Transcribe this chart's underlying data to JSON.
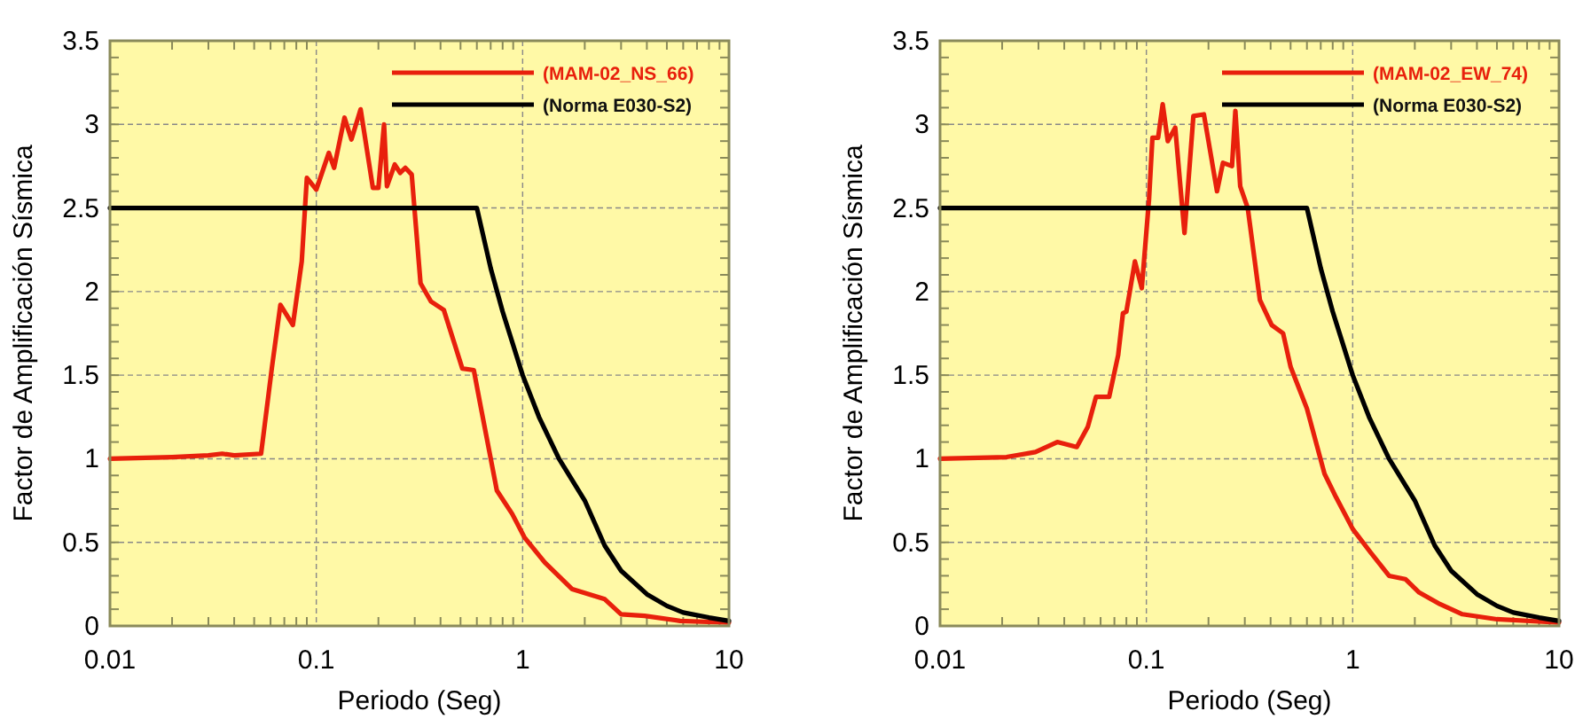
{
  "chart_data": [
    {
      "type": "line",
      "xlabel": "Periodo (Seg)",
      "ylabel": "Factor de Amplificación Sísmica",
      "log": "x",
      "xlim": [
        0.01,
        10
      ],
      "xticks": [
        0.01,
        0.1,
        1,
        10
      ],
      "ylim": [
        0,
        3.5
      ],
      "yticks": [
        0,
        0.5,
        1,
        1.5,
        2,
        2.5,
        3,
        3.5
      ],
      "grid": true,
      "legend": "top right",
      "line_style": "solid",
      "marker": "none",
      "series": [
        {
          "name": "(MAM-02_NS_66)",
          "color": "#e8200c",
          "x": [
            0.01,
            0.02,
            0.03,
            0.035,
            0.04,
            0.054,
            0.061,
            0.067,
            0.077,
            0.085,
            0.09,
            0.1,
            0.115,
            0.122,
            0.137,
            0.148,
            0.164,
            0.188,
            0.2,
            0.213,
            0.22,
            0.24,
            0.255,
            0.27,
            0.29,
            0.32,
            0.36,
            0.415,
            0.51,
            0.58,
            0.62,
            0.75,
            0.89,
            1.02,
            1.28,
            1.74,
            2.5,
            3.0,
            3.9,
            5.8,
            10
          ],
          "values": [
            1.0,
            1.01,
            1.02,
            1.03,
            1.02,
            1.03,
            1.55,
            1.92,
            1.8,
            2.18,
            2.68,
            2.61,
            2.83,
            2.74,
            3.04,
            2.91,
            3.09,
            2.62,
            2.62,
            3.0,
            2.63,
            2.76,
            2.71,
            2.74,
            2.7,
            2.05,
            1.94,
            1.89,
            1.54,
            1.53,
            1.34,
            0.81,
            0.67,
            0.53,
            0.38,
            0.22,
            0.16,
            0.07,
            0.06,
            0.03,
            0.02
          ]
        },
        {
          "name": "(Norma E030-S2)",
          "color": "#000000",
          "x": [
            0.01,
            0.6,
            0.7,
            0.8,
            1,
            1.2,
            1.5,
            2,
            2.5,
            3,
            4,
            5,
            6,
            8,
            10
          ],
          "values": [
            2.5,
            2.5,
            2.14,
            1.88,
            1.5,
            1.25,
            1.0,
            0.75,
            0.48,
            0.33,
            0.19,
            0.12,
            0.08,
            0.05,
            0.03
          ]
        }
      ]
    },
    {
      "type": "line",
      "xlabel": "Periodo (Seg)",
      "ylabel": "Factor de Amplificación Sísmica",
      "log": "x",
      "xlim": [
        0.01,
        10
      ],
      "xticks": [
        0.01,
        0.1,
        1,
        10
      ],
      "ylim": [
        0,
        3.5
      ],
      "yticks": [
        0,
        0.5,
        1,
        1.5,
        2,
        2.5,
        3,
        3.5
      ],
      "grid": true,
      "legend": "top right",
      "line_style": "solid",
      "marker": "none",
      "series": [
        {
          "name": "(MAM-02_EW_74)",
          "color": "#e8200c",
          "x": [
            0.01,
            0.021,
            0.029,
            0.037,
            0.046,
            0.052,
            0.057,
            0.066,
            0.073,
            0.077,
            0.08,
            0.088,
            0.095,
            0.103,
            0.107,
            0.114,
            0.12,
            0.127,
            0.138,
            0.153,
            0.169,
            0.19,
            0.2,
            0.22,
            0.235,
            0.26,
            0.27,
            0.285,
            0.31,
            0.355,
            0.405,
            0.46,
            0.5,
            0.6,
            0.73,
            0.83,
            1.0,
            1.22,
            1.5,
            1.8,
            2.1,
            2.65,
            3.4,
            5.0,
            10
          ],
          "values": [
            1.0,
            1.01,
            1.04,
            1.1,
            1.07,
            1.19,
            1.37,
            1.37,
            1.62,
            1.87,
            1.88,
            2.18,
            2.02,
            2.55,
            2.92,
            2.92,
            3.12,
            2.9,
            2.98,
            2.35,
            3.05,
            3.06,
            2.9,
            2.6,
            2.77,
            2.75,
            3.08,
            2.63,
            2.5,
            1.95,
            1.8,
            1.75,
            1.55,
            1.3,
            0.91,
            0.77,
            0.58,
            0.44,
            0.3,
            0.28,
            0.2,
            0.13,
            0.07,
            0.04,
            0.02
          ]
        },
        {
          "name": "(Norma E030-S2)",
          "color": "#000000",
          "x": [
            0.01,
            0.6,
            0.7,
            0.8,
            1,
            1.2,
            1.5,
            2,
            2.5,
            3,
            4,
            5,
            6,
            8,
            10
          ],
          "values": [
            2.5,
            2.5,
            2.14,
            1.88,
            1.5,
            1.25,
            1.0,
            0.75,
            0.48,
            0.33,
            0.19,
            0.12,
            0.08,
            0.05,
            0.03
          ]
        }
      ]
    }
  ]
}
